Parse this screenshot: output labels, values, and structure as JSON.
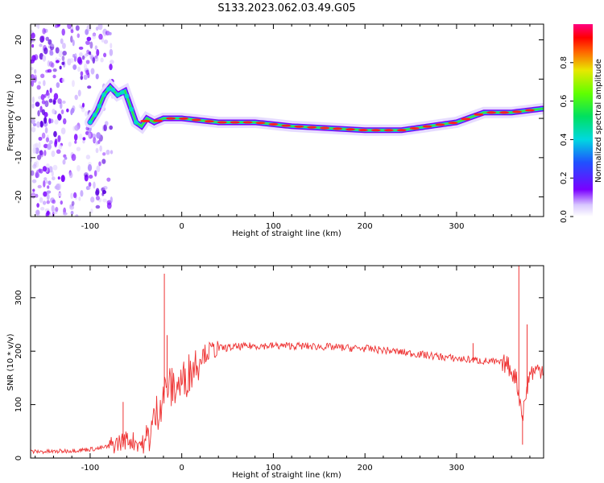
{
  "title": "S133.2023.062.03.49.G05",
  "chart_data": [
    {
      "type": "heatmap",
      "xlabel": "Height of straight line (km)",
      "ylabel": "Frequency (Hz)",
      "xlim": [
        -165,
        395
      ],
      "ylim": [
        -25,
        24
      ],
      "xticks": [
        -100,
        0,
        100,
        200,
        300
      ],
      "yticks": [
        -20,
        -10,
        0,
        10,
        20
      ],
      "ridge": {
        "x": [
          -100,
          -92,
          -85,
          -78,
          -70,
          -62,
          -56,
          -50,
          -44,
          -38,
          -30,
          -20,
          0,
          40,
          80,
          120,
          160,
          200,
          240,
          270,
          300,
          330,
          360,
          395
        ],
        "freq": [
          -1,
          2,
          6,
          8,
          6,
          7,
          3,
          -1,
          -2,
          0,
          -1,
          0,
          0,
          -1,
          -1,
          -2,
          -2.5,
          -3,
          -3,
          -2,
          -1,
          1.5,
          1.5,
          2.5
        ]
      },
      "noise_region_x": [
        -165,
        -75
      ],
      "colorbar": {
        "label": "Normalized spectral amplitude",
        "ticks": [
          "0.0",
          "0.2",
          "0.4",
          "0.6",
          "0.8"
        ],
        "range": [
          0,
          1
        ]
      }
    },
    {
      "type": "line",
      "xlabel": "Height of straight line (km)",
      "ylabel": "SNR (10 * v/v)",
      "xlim": [
        -165,
        395
      ],
      "ylim": [
        0,
        360
      ],
      "xticks": [
        -100,
        0,
        100,
        200,
        300
      ],
      "yticks": [
        0,
        100,
        200,
        300
      ],
      "color": "#ee3333",
      "series": [
        {
          "x": [
            -165,
            -140,
            -110,
            -90,
            -80,
            -70,
            -60,
            -50,
            -40,
            -30,
            -25,
            -20,
            -15,
            -10,
            0,
            10,
            20,
            30,
            40,
            60,
            80,
            100,
            120,
            140,
            160,
            180,
            200,
            220,
            240,
            260,
            280,
            300,
            320,
            340,
            355,
            365,
            372,
            380,
            395
          ],
          "y": [
            12,
            12,
            15,
            18,
            22,
            28,
            35,
            30,
            25,
            70,
            95,
            120,
            135,
            130,
            140,
            165,
            190,
            200,
            205,
            208,
            210,
            210,
            210,
            209,
            208,
            206,
            205,
            202,
            198,
            194,
            190,
            186,
            183,
            180,
            176,
            150,
            80,
            160,
            168
          ]
        }
      ],
      "spikes": [
        {
          "x": -64,
          "y": 105
        },
        {
          "x": -19,
          "y": 345
        },
        {
          "x": -16,
          "y": 230
        },
        {
          "x": 318,
          "y": 215
        },
        {
          "x": 368,
          "y": 360
        },
        {
          "x": 372,
          "y": 25
        },
        {
          "x": 377,
          "y": 250
        }
      ]
    }
  ]
}
